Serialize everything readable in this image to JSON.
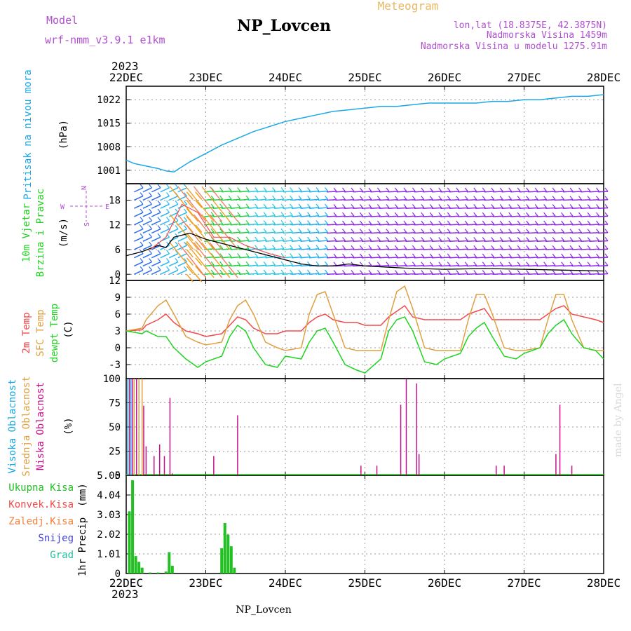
{
  "header": {
    "model_label": "Model",
    "model_value": "wrf-nmm_v3.9.1  e1km",
    "title": "NP_Lovcen",
    "meteogram_label": "Meteogram",
    "coords": "lon,lat (18.8375E, 42.3875N)",
    "elevation": "Nadmorska Visina 1459m",
    "model_elevation": "Nadmorska Visina u modelu 1275.91m",
    "year_top": "2023",
    "year_bottom": "2023",
    "footer_station": "NP_Lovcen",
    "credit": "made by Angel"
  },
  "colors": {
    "pressure": "#1ca8e6",
    "temp2m": "#f24a4a",
    "sfc": "#e0a040",
    "dewpt": "#1fd41f",
    "high_cloud": "#1ca8e6",
    "mid_cloud": "#e0a040",
    "low_cloud": "#c8128c",
    "total_precip": "#22c022",
    "model_text": "#b050d0",
    "meteogram_text": "#e8b860"
  },
  "chart_data": [
    {
      "type": "line",
      "name": "pressure",
      "ylabel_1": "Pritisak na nivou mora",
      "ylabel_2": "(hPa)",
      "ylim": [
        997,
        1026
      ],
      "yticks": [
        1001,
        1008,
        1015,
        1022
      ],
      "x_days": [
        "22DEC",
        "23DEC",
        "24DEC",
        "25DEC",
        "26DEC",
        "27DEC",
        "28DEC"
      ],
      "x": [
        0,
        0.1,
        0.2,
        0.3,
        0.4,
        0.5,
        0.6,
        0.7,
        0.8,
        1.0,
        1.2,
        1.4,
        1.6,
        1.8,
        2.0,
        2.2,
        2.4,
        2.6,
        2.8,
        3.0,
        3.2,
        3.4,
        3.6,
        3.8,
        4.0,
        4.2,
        4.4,
        4.6,
        4.8,
        5.0,
        5.2,
        5.4,
        5.6,
        5.8,
        6.0
      ],
      "values": [
        1004,
        1003,
        1002.5,
        1002,
        1001.5,
        1000.8,
        1000.5,
        1002,
        1003.5,
        1006,
        1008.5,
        1010.5,
        1012.5,
        1014,
        1015.5,
        1016.5,
        1017.5,
        1018.5,
        1019,
        1019.5,
        1020,
        1020,
        1020.5,
        1021,
        1021,
        1021,
        1021,
        1021.5,
        1021.5,
        1022,
        1022,
        1022.5,
        1023,
        1023,
        1023.5
      ]
    },
    {
      "type": "line",
      "name": "wind",
      "ylabel_1": "10m Vjetar",
      "ylabel_2": "Brzina i Pravac",
      "ylabel_3": "(m/s)",
      "compass": {
        "n": "N",
        "e": "E",
        "w": "W",
        "s": "S"
      },
      "ylim": [
        -1.5,
        22
      ],
      "yticks": [
        0,
        6,
        12,
        18
      ],
      "x": [
        0,
        0.2,
        0.4,
        0.5,
        0.6,
        0.8,
        1.0,
        1.2,
        1.4,
        1.6,
        1.8,
        2.0,
        2.2,
        2.4,
        2.6,
        2.8,
        3.0,
        3.5,
        4.0,
        4.5,
        5.0,
        5.5,
        6.0
      ],
      "values": [
        4.5,
        5.5,
        7,
        6.5,
        9,
        10,
        8.5,
        7.5,
        6.5,
        5.5,
        4.5,
        3.5,
        2.5,
        2,
        2,
        2.5,
        2,
        1.5,
        1.2,
        1.4,
        1.2,
        1,
        0.8
      ],
      "gust_x": [
        0.3,
        0.5,
        0.7,
        0.9,
        1.1,
        1.3,
        1.5,
        1.8,
        2.0
      ],
      "gust_values": [
        6,
        9,
        17,
        15,
        9,
        9,
        7,
        5,
        4
      ]
    },
    {
      "type": "line",
      "name": "temperature",
      "ylabel_1": "2m Temp",
      "ylabel_2": "SFC Temp",
      "ylabel_3": "dewpt Temp",
      "ylabel_4": "(C)",
      "ylim": [
        -5.5,
        12
      ],
      "yticks": [
        -3,
        0,
        3,
        6,
        9,
        12
      ],
      "x": [
        0,
        0.2,
        0.25,
        0.4,
        0.5,
        0.6,
        0.75,
        0.9,
        1.0,
        1.2,
        1.3,
        1.4,
        1.5,
        1.6,
        1.75,
        1.9,
        2.0,
        2.2,
        2.3,
        2.4,
        2.5,
        2.6,
        2.75,
        2.9,
        3.0,
        3.2,
        3.3,
        3.4,
        3.5,
        3.6,
        3.75,
        3.9,
        4.0,
        4.2,
        4.3,
        4.4,
        4.5,
        4.6,
        4.75,
        4.9,
        5.0,
        5.2,
        5.3,
        5.4,
        5.5,
        5.6,
        5.75,
        5.9,
        6.0
      ],
      "series": [
        {
          "name": "2m Temp",
          "color": "#f24a4a",
          "values": [
            3,
            3.2,
            4,
            5,
            6,
            4.5,
            3,
            2.5,
            2,
            2.5,
            4,
            5.5,
            5,
            3.5,
            2.5,
            2.5,
            3,
            3,
            4.5,
            5.5,
            6,
            5,
            4.5,
            4.5,
            4,
            4,
            5.5,
            6.5,
            7.5,
            5.5,
            5,
            5,
            5,
            5,
            6,
            6.5,
            7,
            5,
            5,
            5,
            5,
            5,
            6,
            7,
            7.5,
            6,
            5.5,
            5,
            4.5
          ]
        },
        {
          "name": "SFC Temp",
          "color": "#e0a040",
          "values": [
            3,
            3.5,
            5,
            7.5,
            8.5,
            6,
            2,
            1,
            0.5,
            1,
            5,
            7.5,
            8.5,
            6,
            1,
            0,
            -0.5,
            0,
            6,
            9.5,
            10,
            6,
            0,
            -0.5,
            -0.5,
            -0.5,
            5,
            10,
            11,
            7,
            0,
            -0.5,
            -0.5,
            -0.5,
            5,
            9.5,
            9.5,
            6,
            0,
            -0.5,
            -0.5,
            0,
            5,
            9.5,
            9.5,
            5,
            0,
            -0.5,
            -0.5
          ]
        },
        {
          "name": "dewpt Temp",
          "color": "#1fd41f",
          "values": [
            3,
            2.5,
            3,
            2,
            2,
            0,
            -2,
            -3.5,
            -2.5,
            -1.5,
            2,
            4,
            3,
            0,
            -3,
            -3.5,
            -1.5,
            -2,
            1,
            3,
            3.5,
            1,
            -3,
            -4,
            -4.5,
            -2,
            3,
            5,
            5.5,
            3,
            -2.5,
            -3,
            -2,
            -1,
            2,
            3.5,
            4.5,
            2,
            -1.5,
            -2,
            -1,
            0,
            2.5,
            4,
            5,
            2.5,
            0,
            -0.5,
            -2
          ]
        }
      ]
    },
    {
      "type": "bar",
      "name": "clouds",
      "ylabel_1": "Visoka Oblacnost",
      "ylabel_2": "Srednja Oblacnost",
      "ylabel_3": "Niska Oblacnost",
      "ylabel_4": "(%)",
      "ylim": [
        0,
        100
      ],
      "yticks": [
        0,
        25,
        50,
        75,
        100
      ],
      "series": [
        {
          "name": "Visoka Oblacnost",
          "color": "#1ca8e6",
          "x": [
            0.02,
            0.06
          ],
          "values": [
            100,
            100
          ]
        },
        {
          "name": "Srednja Oblacnost",
          "color": "#e0a040",
          "x": [
            0.1,
            0.16,
            0.2
          ],
          "values": [
            100,
            100,
            100
          ]
        },
        {
          "name": "Niska Oblacnost",
          "color": "#c8128c",
          "x": [
            0.04,
            0.08,
            0.13,
            0.22,
            0.25,
            0.35,
            0.42,
            0.48,
            0.55,
            0.58,
            1.1,
            1.4,
            2.95,
            3.15,
            3.45,
            3.52,
            3.65,
            3.68,
            4.65,
            4.75,
            5.4,
            5.45,
            5.6
          ],
          "values": [
            100,
            100,
            100,
            72,
            30,
            20,
            32,
            20,
            80,
            2,
            20,
            62,
            10,
            10,
            73,
            100,
            95,
            22,
            10,
            10,
            22,
            73,
            10
          ]
        }
      ]
    },
    {
      "type": "bar",
      "name": "precipitation",
      "ylabel_1": "1hr Precip",
      "ylabel_2": "(mm)",
      "legend": [
        "Ukupna Kisa",
        "Konvek.Kisa",
        "Zaledj.Kisa",
        "Snijeg",
        "Grad"
      ],
      "legend_colors": [
        "#22c022",
        "#f24a4a",
        "#f0803c",
        "#4040e0",
        "#22c0a0"
      ],
      "ylim": [
        0,
        5.05
      ],
      "yticks": [
        "0",
        "1.01",
        "2.02",
        "3.03",
        "4.04",
        "5.05"
      ],
      "x": [
        0.04,
        0.08,
        0.12,
        0.16,
        0.2,
        0.3,
        0.4,
        0.5,
        0.54,
        0.58,
        1.2,
        1.24,
        1.28,
        1.32,
        1.36
      ],
      "values": [
        3.2,
        4.8,
        0.9,
        0.6,
        0.3,
        0.05,
        0.05,
        0.1,
        1.1,
        0.4,
        1.3,
        2.6,
        2.0,
        1.4,
        0.3
      ]
    }
  ]
}
